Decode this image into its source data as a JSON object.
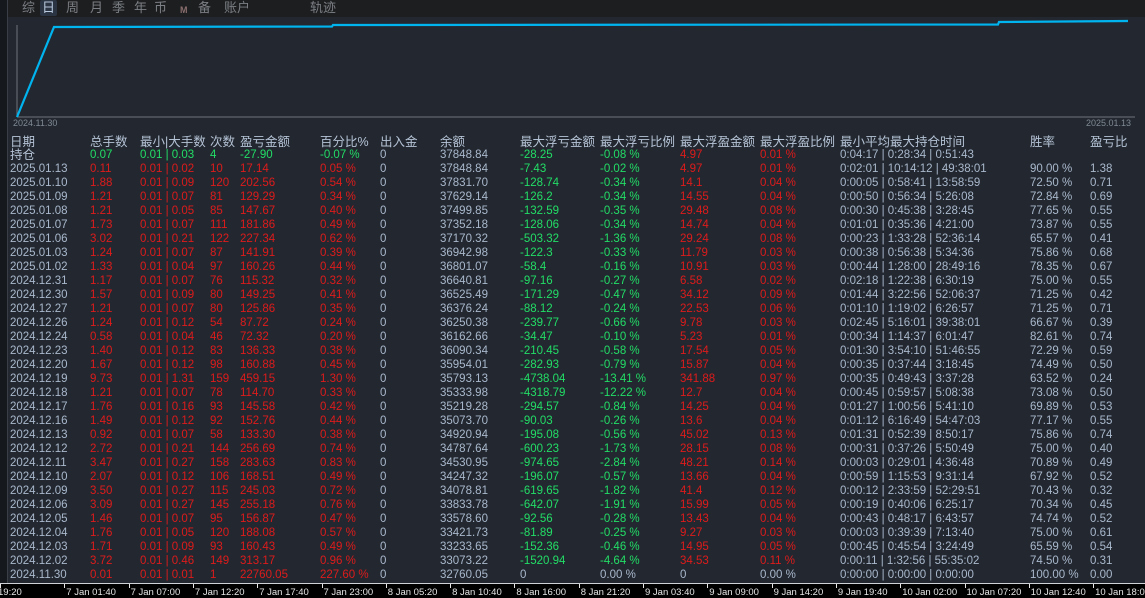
{
  "tabs": [
    {
      "label": "综",
      "active": false
    },
    {
      "label": "日",
      "active": true
    },
    {
      "label": "周",
      "active": false
    },
    {
      "label": "月",
      "active": false
    },
    {
      "label": "季",
      "active": false
    },
    {
      "label": "年",
      "active": false
    },
    {
      "label": "币",
      "active": false
    },
    {
      "label": "M",
      "active": false
    },
    {
      "label": "备",
      "active": false
    },
    {
      "label": "账户",
      "active": false
    },
    {
      "label": "轨迹",
      "active": false
    }
  ],
  "chart": {
    "start_label": "2024.11.30",
    "end_label": "2025.01.13",
    "line_color": "#00b4f0"
  },
  "colors": {
    "positive": "#dd1b1b",
    "negative": "#22dd66",
    "text": "#a9b8cc"
  },
  "table": {
    "headers": [
      "日期",
      "总手数",
      "最小|大手数",
      "次数",
      "盈亏金额",
      "百分比%",
      "出入金",
      "余额",
      "最大浮亏金额",
      "最大浮亏比例",
      "最大浮盈金额",
      "最大浮盈比例",
      "最小平均最大持仓时间",
      "胜率",
      "盈亏比"
    ],
    "holding": [
      "持仓",
      "0.07",
      "0.01 | 0.03",
      "4",
      "-27.90",
      "-0.07 %",
      "0",
      "37848.84",
      "-28.25",
      "-0.08 %",
      "4.97",
      "0.01 %",
      "0:04:17 | 0:28:34 | 0:51:43",
      "",
      ""
    ],
    "rows": [
      [
        "2025.01.13",
        "0.11",
        "0.01 | 0.02",
        "10",
        "17.14",
        "0.05 %",
        "0",
        "37848.84",
        "-7.43",
        "-0.02 %",
        "4.97",
        "0.01 %",
        "0:02:01 | 10:14:12 | 49:38:01",
        "90.00 %",
        "1.38"
      ],
      [
        "2025.01.10",
        "1.88",
        "0.01 | 0.09",
        "120",
        "202.56",
        "0.54 %",
        "0",
        "37831.70",
        "-128.74",
        "-0.34 %",
        "14.1",
        "0.04 %",
        "0:00:05 | 0:58:41 | 13:58:59",
        "72.50 %",
        "0.71"
      ],
      [
        "2025.01.09",
        "1.21",
        "0.01 | 0.07",
        "81",
        "129.29",
        "0.34 %",
        "0",
        "37629.14",
        "-126.2",
        "-0.34 %",
        "14.55",
        "0.04 %",
        "0:00:50 | 0:56:34 | 5:26:08",
        "72.84 %",
        "0.69"
      ],
      [
        "2025.01.08",
        "1.21",
        "0.01 | 0.05",
        "85",
        "147.67",
        "0.40 %",
        "0",
        "37499.85",
        "-132.59",
        "-0.35 %",
        "29.48",
        "0.08 %",
        "0:00:30 | 0:45:38 | 3:28:45",
        "77.65 %",
        "0.55"
      ],
      [
        "2025.01.07",
        "1.73",
        "0.01 | 0.07",
        "111",
        "181.86",
        "0.49 %",
        "0",
        "37352.18",
        "-128.06",
        "-0.34 %",
        "14.74",
        "0.04 %",
        "0:01:01 | 0:35:36 | 4:21:00",
        "73.87 %",
        "0.55"
      ],
      [
        "2025.01.06",
        "3.02",
        "0.01 | 0.21",
        "122",
        "227.34",
        "0.62 %",
        "0",
        "37170.32",
        "-503.32",
        "-1.36 %",
        "29.24",
        "0.08 %",
        "0:00:23 | 1:33:28 | 52:36:14",
        "65.57 %",
        "0.41"
      ],
      [
        "2025.01.03",
        "1.24",
        "0.01 | 0.07",
        "87",
        "141.91",
        "0.39 %",
        "0",
        "36942.98",
        "-122.3",
        "-0.33 %",
        "11.79",
        "0.03 %",
        "0:00:38 | 0:56:38 | 5:34:36",
        "75.86 %",
        "0.68"
      ],
      [
        "2025.01.02",
        "1.33",
        "0.01 | 0.04",
        "97",
        "160.26",
        "0.44 %",
        "0",
        "36801.07",
        "-58.4",
        "-0.16 %",
        "10.91",
        "0.03 %",
        "0:00:44 | 1:28:00 | 28:49:16",
        "78.35 %",
        "0.67"
      ],
      [
        "2024.12.31",
        "1.17",
        "0.01 | 0.07",
        "76",
        "115.32",
        "0.32 %",
        "0",
        "36640.81",
        "-97.16",
        "-0.27 %",
        "6.58",
        "0.02 %",
        "0:02:18 | 1:22:38 | 6:30:19",
        "75.00 %",
        "0.55"
      ],
      [
        "2024.12.30",
        "1.57",
        "0.01 | 0.09",
        "80",
        "149.25",
        "0.41 %",
        "0",
        "36525.49",
        "-171.29",
        "-0.47 %",
        "34.12",
        "0.09 %",
        "0:01:44 | 3:22:56 | 52:06:37",
        "71.25 %",
        "0.42"
      ],
      [
        "2024.12.27",
        "1.21",
        "0.01 | 0.07",
        "80",
        "125.86",
        "0.35 %",
        "0",
        "36376.24",
        "-88.12",
        "-0.24 %",
        "22.53",
        "0.06 %",
        "0:01:10 | 1:19:02 | 6:26:57",
        "71.25 %",
        "0.71"
      ],
      [
        "2024.12.26",
        "1.24",
        "0.01 | 0.12",
        "54",
        "87.72",
        "0.24 %",
        "0",
        "36250.38",
        "-239.77",
        "-0.66 %",
        "9.78",
        "0.03 %",
        "0:02:45 | 5:16:01 | 39:38:01",
        "66.67 %",
        "0.39"
      ],
      [
        "2024.12.24",
        "0.58",
        "0.01 | 0.04",
        "46",
        "72.32",
        "0.20 %",
        "0",
        "36162.66",
        "-34.47",
        "-0.10 %",
        "5.23",
        "0.01 %",
        "0:00:34 | 1:14:37 | 6:01:47",
        "82.61 %",
        "0.74"
      ],
      [
        "2024.12.23",
        "1.40",
        "0.01 | 0.12",
        "83",
        "136.33",
        "0.38 %",
        "0",
        "36090.34",
        "-210.45",
        "-0.58 %",
        "17.54",
        "0.05 %",
        "0:01:30 | 3:54:10 | 51:46:55",
        "72.29 %",
        "0.59"
      ],
      [
        "2024.12.20",
        "1.67",
        "0.01 | 0.12",
        "98",
        "160.88",
        "0.45 %",
        "0",
        "35954.01",
        "-282.93",
        "-0.79 %",
        "15.87",
        "0.04 %",
        "0:00:35 | 0:37:44 | 3:18:45",
        "74.49 %",
        "0.50"
      ],
      [
        "2024.12.19",
        "9.73",
        "0.01 | 1.31",
        "159",
        "459.15",
        "1.30 %",
        "0",
        "35793.13",
        "-4738.04",
        "-13.41 %",
        "341.88",
        "0.97 %",
        "0:00:35 | 0:49:43 | 3:37:28",
        "63.52 %",
        "0.24"
      ],
      [
        "2024.12.18",
        "1.21",
        "0.01 | 0.07",
        "78",
        "114.70",
        "0.33 %",
        "0",
        "35333.98",
        "-4318.79",
        "-12.22 %",
        "12.7",
        "0.04 %",
        "0:00:45 | 0:59:57 | 5:08:38",
        "73.08 %",
        "0.50"
      ],
      [
        "2024.12.17",
        "1.76",
        "0.01 | 0.16",
        "93",
        "145.58",
        "0.42 %",
        "0",
        "35219.28",
        "-294.57",
        "-0.84 %",
        "14.25",
        "0.04 %",
        "0:01:27 | 1:00:56 | 5:41:10",
        "69.89 %",
        "0.53"
      ],
      [
        "2024.12.16",
        "1.49",
        "0.01 | 0.12",
        "92",
        "152.76",
        "0.44 %",
        "0",
        "35073.70",
        "-90.03",
        "-0.26 %",
        "13.6",
        "0.04 %",
        "0:01:12 | 6:16:49 | 54:47:03",
        "77.17 %",
        "0.55"
      ],
      [
        "2024.12.13",
        "0.92",
        "0.01 | 0.07",
        "58",
        "133.30",
        "0.38 %",
        "0",
        "34920.94",
        "-195.08",
        "-0.56 %",
        "45.02",
        "0.13 %",
        "0:01:31 | 0:52:39 | 8:50:17",
        "75.86 %",
        "0.74"
      ],
      [
        "2024.12.12",
        "2.72",
        "0.01 | 0.21",
        "144",
        "256.69",
        "0.74 %",
        "0",
        "34787.64",
        "-600.23",
        "-1.73 %",
        "28.15",
        "0.08 %",
        "0:00:31 | 0:37:26 | 5:50:49",
        "75.00 %",
        "0.40"
      ],
      [
        "2024.12.11",
        "3.47",
        "0.01 | 0.27",
        "158",
        "283.63",
        "0.83 %",
        "0",
        "34530.95",
        "-974.65",
        "-2.84 %",
        "48.21",
        "0.14 %",
        "0:00:03 | 0:29:01 | 4:36:48",
        "70.89 %",
        "0.49"
      ],
      [
        "2024.12.10",
        "2.07",
        "0.01 | 0.12",
        "106",
        "168.51",
        "0.49 %",
        "0",
        "34247.32",
        "-196.07",
        "-0.57 %",
        "13.66",
        "0.04 %",
        "0:00:59 | 1:15:53 | 9:31:14",
        "67.92 %",
        "0.52"
      ],
      [
        "2024.12.09",
        "3.50",
        "0.01 | 0.27",
        "115",
        "245.03",
        "0.72 %",
        "0",
        "34078.81",
        "-619.65",
        "-1.82 %",
        "41.4",
        "0.12 %",
        "0:00:12 | 2:33:59 | 52:29:51",
        "70.43 %",
        "0.32"
      ],
      [
        "2024.12.06",
        "3.09",
        "0.01 | 0.27",
        "145",
        "255.18",
        "0.76 %",
        "0",
        "33833.78",
        "-642.07",
        "-1.91 %",
        "15.99",
        "0.05 %",
        "0:00:19 | 0:40:06 | 6:25:17",
        "70.34 %",
        "0.45"
      ],
      [
        "2024.12.05",
        "1.46",
        "0.01 | 0.07",
        "95",
        "156.87",
        "0.47 %",
        "0",
        "33578.60",
        "-92.56",
        "-0.28 %",
        "13.43",
        "0.04 %",
        "0:00:43 | 0:48:17 | 6:43:57",
        "74.74 %",
        "0.52"
      ],
      [
        "2024.12.04",
        "1.76",
        "0.01 | 0.05",
        "120",
        "188.08",
        "0.57 %",
        "0",
        "33421.73",
        "-81.89",
        "-0.25 %",
        "9.27",
        "0.03 %",
        "0:00:03 | 0:39:39 | 7:13:40",
        "75.00 %",
        "0.61"
      ],
      [
        "2024.12.03",
        "1.71",
        "0.01 | 0.09",
        "93",
        "160.43",
        "0.49 %",
        "0",
        "33233.65",
        "-152.36",
        "-0.46 %",
        "14.95",
        "0.05 %",
        "0:00:45 | 0:45:54 | 3:24:49",
        "65.59 %",
        "0.54"
      ],
      [
        "2024.12.02",
        "3.72",
        "0.01 | 0.46",
        "149",
        "313.17",
        "0.96 %",
        "0",
        "33073.22",
        "-1520.94",
        "-4.64 %",
        "34.53",
        "0.11 %",
        "0:00:11 | 1:32:56 | 55:35:02",
        "74.50 %",
        "0.31"
      ],
      [
        "2024.11.30",
        "0.01",
        "0.01 | 0.01",
        "1",
        "22760.05",
        "227.60 %",
        "0",
        "32760.05",
        "0",
        "0.00 %",
        "0",
        "0.00 %",
        "0:00:00 | 0:00:00 | 0:00:00",
        "100.00 %",
        "0.00"
      ]
    ]
  },
  "time_axis": [
    "19:20",
    "7 Jan 01:40",
    "7 Jan 07:00",
    "7 Jan 12:20",
    "7 Jan 17:40",
    "7 Jan 23:00",
    "8 Jan 05:20",
    "8 Jan 10:40",
    "8 Jan 16:00",
    "8 Jan 21:20",
    "9 Jan 03:40",
    "9 Jan 09:00",
    "9 Jan 14:20",
    "9 Jan 19:40",
    "10 Jan 02:00",
    "10 Jan 07:20",
    "10 Jan 12:40",
    "10 Jan 18:00",
    "10 Ja"
  ]
}
